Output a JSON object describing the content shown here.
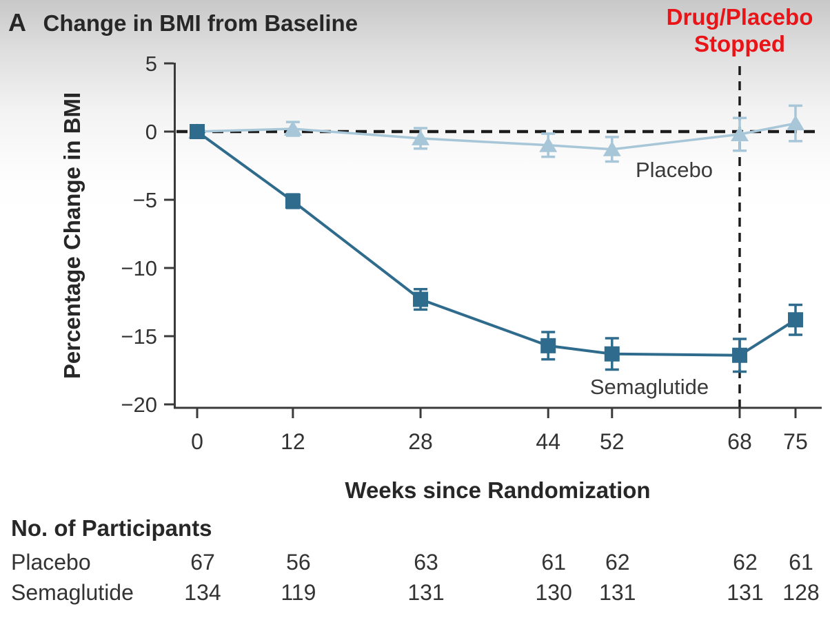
{
  "panel": {
    "label": "A",
    "title": "Change in BMI from Baseline"
  },
  "annotation": {
    "line1": "Drug/Placebo",
    "line2": "Stopped",
    "color": "#e81417"
  },
  "colors": {
    "axis": "#3a3a3a",
    "dashed_line": "#1c1c1c",
    "text_dark": "#272727",
    "series_label": "#3a3a3a",
    "placebo": "#a7c6d8",
    "semaglutide": "#2f6b8c"
  },
  "chart_data": {
    "type": "line",
    "title": "Change in BMI from Baseline",
    "xlabel": "Weeks since Randomization",
    "ylabel": "Percentage Change in BMI",
    "x": [
      0,
      12,
      28,
      44,
      52,
      68,
      75
    ],
    "x_tick_labels": [
      "0",
      "12",
      "28",
      "44",
      "52",
      "68",
      "75"
    ],
    "y_ticks": [
      5,
      0,
      -5,
      -10,
      -15,
      -20
    ],
    "y_tick_labels": [
      "5",
      "0",
      "−5",
      "−10",
      "−15",
      "−20"
    ],
    "ylim": [
      -20,
      5
    ],
    "grid": false,
    "reference_line_y": 0,
    "treatment_stop_week": 68,
    "series": [
      {
        "name": "Placebo",
        "label": "Placebo",
        "marker": "triangle",
        "color": "#a7c6d8",
        "values": [
          0.0,
          0.2,
          -0.5,
          -1.0,
          -1.3,
          -0.2,
          0.6
        ],
        "errors": [
          0,
          0.5,
          0.75,
          0.85,
          0.9,
          1.2,
          1.3
        ]
      },
      {
        "name": "Semaglutide",
        "label": "Semaglutide",
        "marker": "square",
        "color": "#2f6b8c",
        "values": [
          0.0,
          -5.1,
          -12.3,
          -15.7,
          -16.3,
          -16.4,
          -13.8
        ],
        "errors": [
          0,
          0.5,
          0.75,
          1.0,
          1.15,
          1.2,
          1.1
        ]
      }
    ]
  },
  "participants_table": {
    "title": "No. of Participants",
    "rows": [
      {
        "label": "Placebo",
        "counts": [
          "67",
          "56",
          "63",
          "61",
          "62",
          "62",
          "61"
        ]
      },
      {
        "label": "Semaglutide",
        "counts": [
          "134",
          "119",
          "131",
          "130",
          "131",
          "131",
          "128"
        ]
      }
    ]
  }
}
